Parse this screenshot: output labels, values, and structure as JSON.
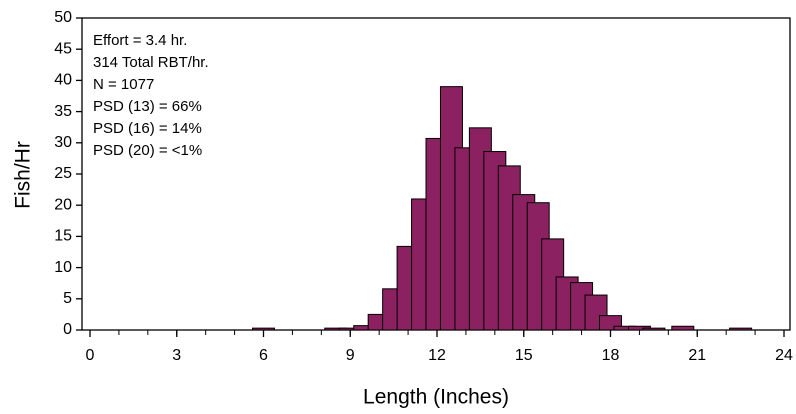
{
  "chart_data": {
    "type": "bar",
    "x": [
      6,
      8.5,
      9,
      9.5,
      10,
      10.5,
      11,
      11.5,
      12,
      12.5,
      13,
      13.5,
      14,
      14.5,
      15,
      15.5,
      16,
      16.5,
      17,
      17.5,
      18,
      18.5,
      19,
      19.5,
      20.5,
      22.5
    ],
    "values": [
      0.3,
      0.3,
      0.3,
      0.7,
      2.5,
      6.6,
      13.4,
      21,
      30.7,
      39,
      29.2,
      32.4,
      28.6,
      26.3,
      21.7,
      20.4,
      14.6,
      8.5,
      7.6,
      5.6,
      2.3,
      0.6,
      0.6,
      0.3,
      0.6,
      0.3
    ],
    "color": "#8b2160",
    "x_label": "Length (Inches)",
    "y_label": "Fish/Hr",
    "xlim": [
      0,
      24
    ],
    "xticks": [
      0,
      3,
      6,
      9,
      12,
      15,
      18,
      21,
      24
    ],
    "x_minor_ticks": [
      0,
      1,
      2,
      3,
      4,
      5,
      6,
      7,
      8,
      9,
      10,
      11,
      12,
      13,
      14,
      15,
      16,
      17,
      18,
      19,
      20,
      21,
      22,
      23,
      24
    ],
    "ylim": [
      0,
      50
    ],
    "yticks": [
      0,
      5,
      10,
      15,
      20,
      25,
      30,
      35,
      40,
      45,
      50
    ],
    "annotations": [
      "Effort =  3.4 hr.",
      "314 Total RBT/hr.",
      "N = 1077",
      "PSD (13) = 66%",
      "PSD (16) = 14%",
      "PSD (20) = <1%"
    ]
  }
}
